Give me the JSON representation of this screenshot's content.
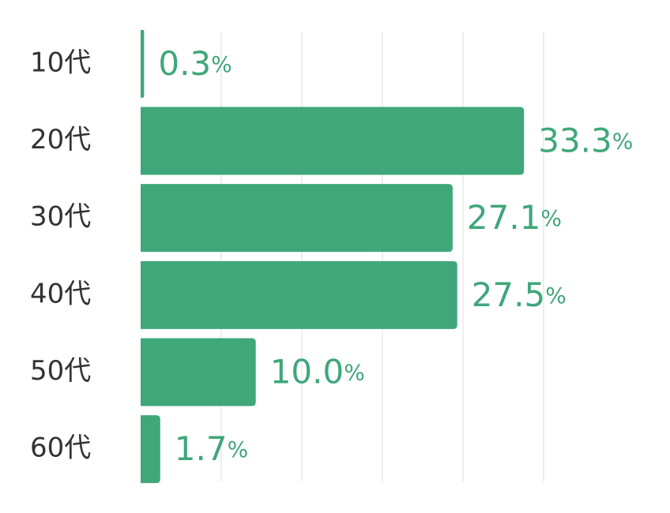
{
  "chart_data": {
    "type": "bar",
    "orientation": "horizontal",
    "categories": [
      "10代",
      "20代",
      "30代",
      "40代",
      "50代",
      "60代"
    ],
    "values": [
      0.3,
      33.3,
      27.1,
      27.5,
      10.0,
      1.7
    ],
    "value_labels": [
      "0.3%",
      "33.3%",
      "27.1%",
      "27.5%",
      "10.0%",
      "1.7%"
    ],
    "color": "#3fa77a",
    "xlim": [
      0,
      35
    ],
    "xticks": [
      7,
      14,
      21,
      28,
      35
    ],
    "grid": true
  }
}
